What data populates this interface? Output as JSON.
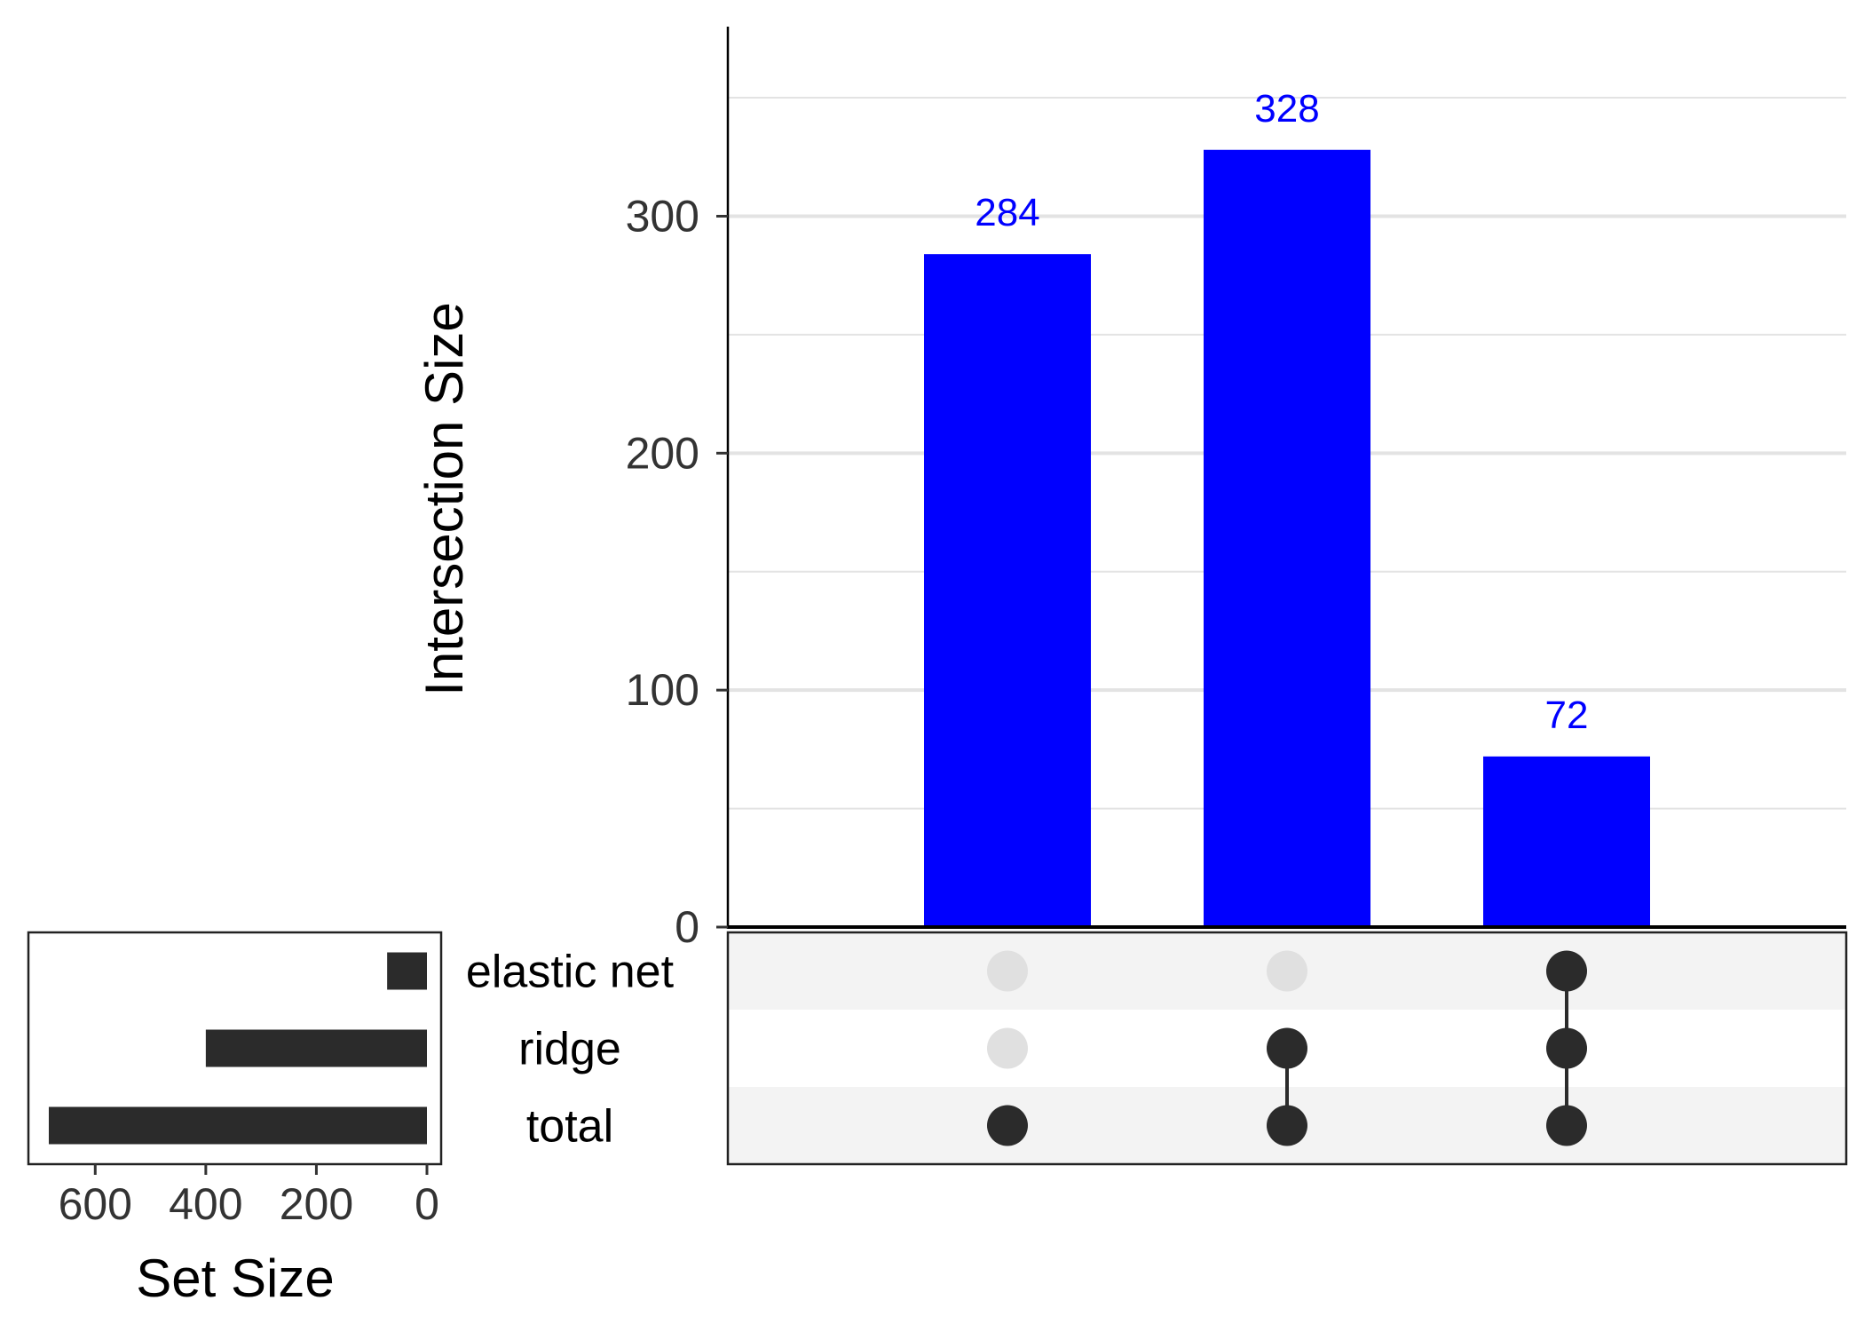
{
  "chart_data": {
    "type": "bar",
    "subtype": "upset",
    "intersections": {
      "ylabel": "Intersection Size",
      "ylim": [
        0,
        380
      ],
      "yticks": [
        0,
        100,
        200,
        300
      ],
      "bar_color": "#0000ff",
      "label_color": "#0000ff",
      "bars": [
        {
          "value": 284,
          "label": "284",
          "members": [
            "total"
          ]
        },
        {
          "value": 328,
          "label": "328",
          "members": [
            "ridge",
            "total"
          ]
        },
        {
          "value": 72,
          "label": "72",
          "members": [
            "elastic net",
            "ridge",
            "total"
          ]
        }
      ]
    },
    "sets": {
      "names": [
        "elastic net",
        "ridge",
        "total"
      ],
      "values": [
        72,
        400,
        684
      ],
      "xlabel": "Set Size",
      "xlim": [
        0,
        720
      ],
      "xticks": [
        600,
        400,
        200,
        0
      ],
      "tick_labels": [
        "600",
        "400",
        "200",
        "0"
      ],
      "bar_color": "#2b2b2b"
    },
    "matrix": {
      "active_color": "#2b2b2b",
      "inactive_color": "#e0e0e0",
      "stripe_color": "#f3f3f3"
    },
    "grid": true,
    "legend": "none"
  }
}
